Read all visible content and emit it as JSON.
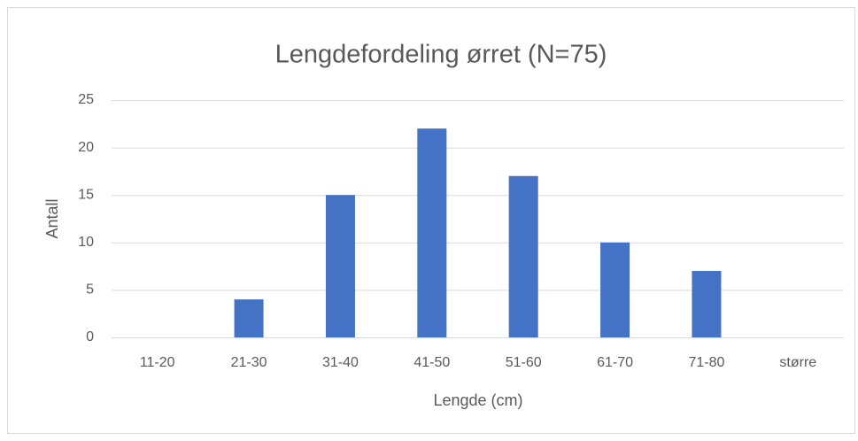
{
  "chart_data": {
    "type": "bar",
    "title": "Lengdefordeling ørret (N=75)",
    "xlabel": "Lengde (cm)",
    "ylabel": "Antall",
    "categories": [
      "11-20",
      "21-30",
      "31-40",
      "41-50",
      "51-60",
      "61-70",
      "71-80",
      "større"
    ],
    "values": [
      0,
      4,
      15,
      22,
      17,
      10,
      7,
      0
    ],
    "color": "#4472c4",
    "ylim": [
      0,
      25
    ],
    "yticks": [
      0,
      5,
      10,
      15,
      20,
      25
    ],
    "grid": true
  }
}
